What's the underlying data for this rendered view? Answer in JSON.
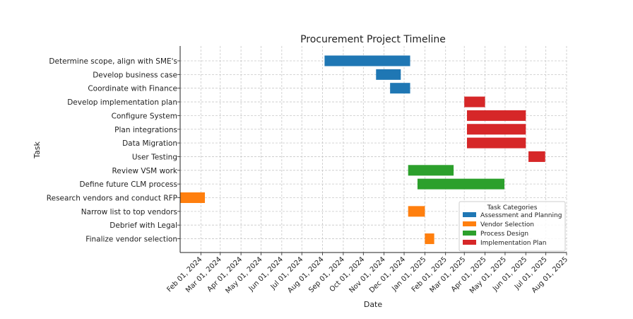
{
  "chart_data": {
    "type": "gantt",
    "title": "Procurement Project Timeline",
    "xlabel": "Date",
    "ylabel": "Task",
    "x_ticks": [
      "Feb 01, 2024",
      "Mar 01, 2024",
      "Apr 01, 2024",
      "May 01, 2024",
      "Jun 01, 2024",
      "Jul 01, 2024",
      "Aug 01, 2024",
      "Sep 01, 2024",
      "Oct 01, 2024",
      "Nov 01, 2024",
      "Dec 01, 2024",
      "Jan 01, 2025",
      "Feb 01, 2025",
      "Mar 01, 2025",
      "Apr 01, 2025",
      "May 01, 2025",
      "Jun 01, 2025",
      "Jul 01, 2025",
      "Aug 01, 2025"
    ],
    "xlim": [
      "2024-01-01",
      "2025-08-01"
    ],
    "grid": true,
    "legend_position": "lower-right",
    "legend_title": "Task Categories",
    "categories": [
      {
        "name": "Assessment and Planning",
        "color": "#1f77b4"
      },
      {
        "name": "Vendor Selection",
        "color": "#ff7f0e"
      },
      {
        "name": "Process Design",
        "color": "#2ca02c"
      },
      {
        "name": "Implementation Plan",
        "color": "#d62728"
      }
    ],
    "tasks": [
      {
        "name": "Determine scope, align with SME's",
        "category": "Assessment and Planning",
        "start": "2024-08-04",
        "end": "2024-12-10"
      },
      {
        "name": "Develop business case",
        "category": "Assessment and Planning",
        "start": "2024-10-20",
        "end": "2024-11-26"
      },
      {
        "name": "Coordinate with Finance",
        "category": "Assessment and Planning",
        "start": "2024-11-10",
        "end": "2024-12-10"
      },
      {
        "name": "Develop implementation plan",
        "category": "Implementation Plan",
        "start": "2025-03-01",
        "end": "2025-04-01"
      },
      {
        "name": "Configure System",
        "category": "Implementation Plan",
        "start": "2025-03-05",
        "end": "2025-06-01"
      },
      {
        "name": "Plan integrations",
        "category": "Implementation Plan",
        "start": "2025-03-05",
        "end": "2025-06-01"
      },
      {
        "name": "Data Migration",
        "category": "Implementation Plan",
        "start": "2025-03-05",
        "end": "2025-06-01"
      },
      {
        "name": "User Testing",
        "category": "Implementation Plan",
        "start": "2025-06-05",
        "end": "2025-06-30"
      },
      {
        "name": "Review VSM work",
        "category": "Process Design",
        "start": "2024-12-07",
        "end": "2025-02-13"
      },
      {
        "name": "Define future CLM process",
        "category": "Process Design",
        "start": "2024-12-21",
        "end": "2025-04-30"
      },
      {
        "name": "Research vendors and conduct RFP",
        "category": "Vendor Selection",
        "start": "2024-01-01",
        "end": "2024-02-07"
      },
      {
        "name": "Narrow list to top vendors",
        "category": "Vendor Selection",
        "start": "2024-12-07",
        "end": "2025-01-01"
      },
      {
        "name": "Debrief with Legal",
        "category": "Vendor Selection",
        "start": null,
        "end": null
      },
      {
        "name": "Finalize vendor selection",
        "category": "Vendor Selection",
        "start": "2025-01-01",
        "end": "2025-01-15"
      }
    ]
  }
}
